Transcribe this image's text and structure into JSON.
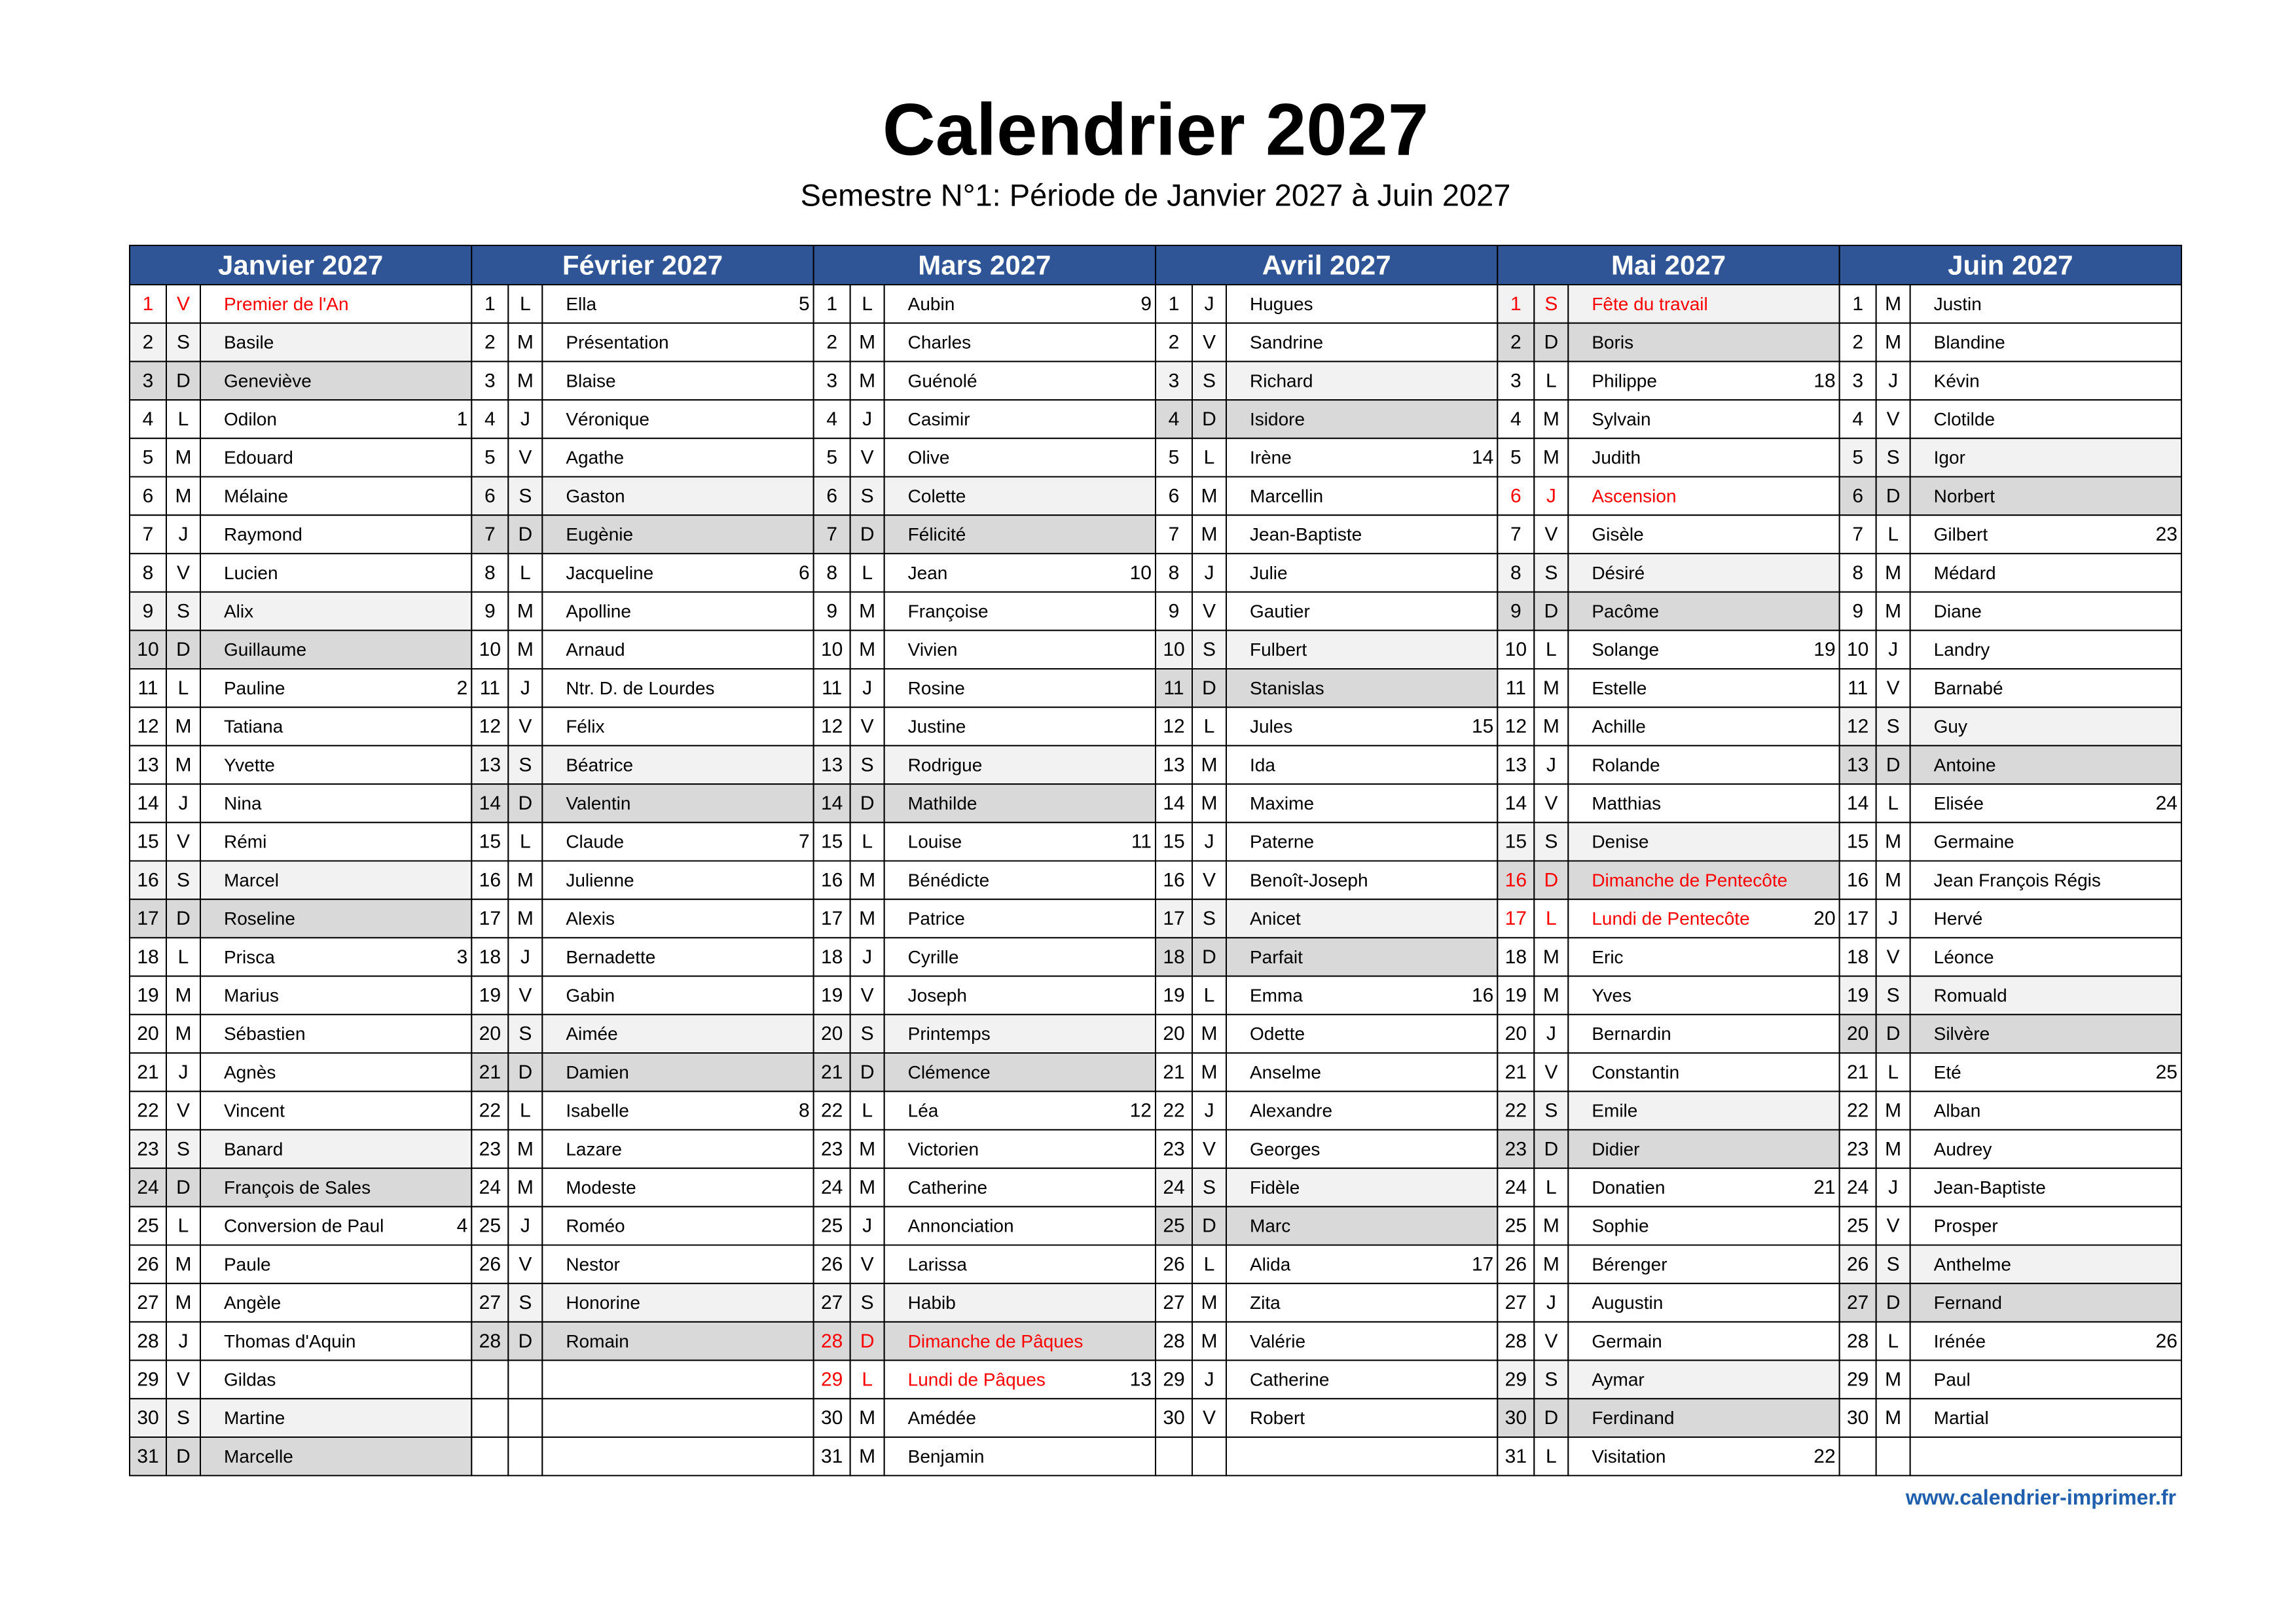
{
  "header": {
    "title": "Calendrier 2027",
    "subtitle": "Semestre N°1: Période de Janvier 2027 à Juin 2027"
  },
  "footer": "www.calendrier-imprimer.fr",
  "months": [
    {
      "name": "Janvier 2027",
      "days": [
        {
          "day": 1,
          "wd": "V",
          "name": "Premier de l'An",
          "holiday": true
        },
        {
          "day": 2,
          "wd": "S",
          "name": "Basile"
        },
        {
          "day": 3,
          "wd": "D",
          "name": "Geneviève"
        },
        {
          "day": 4,
          "wd": "L",
          "name": "Odilon",
          "week": 1
        },
        {
          "day": 5,
          "wd": "M",
          "name": "Edouard"
        },
        {
          "day": 6,
          "wd": "M",
          "name": "Mélaine"
        },
        {
          "day": 7,
          "wd": "J",
          "name": "Raymond"
        },
        {
          "day": 8,
          "wd": "V",
          "name": "Lucien"
        },
        {
          "day": 9,
          "wd": "S",
          "name": "Alix"
        },
        {
          "day": 10,
          "wd": "D",
          "name": "Guillaume"
        },
        {
          "day": 11,
          "wd": "L",
          "name": "Pauline",
          "week": 2
        },
        {
          "day": 12,
          "wd": "M",
          "name": "Tatiana"
        },
        {
          "day": 13,
          "wd": "M",
          "name": "Yvette"
        },
        {
          "day": 14,
          "wd": "J",
          "name": "Nina"
        },
        {
          "day": 15,
          "wd": "V",
          "name": "Rémi"
        },
        {
          "day": 16,
          "wd": "S",
          "name": "Marcel"
        },
        {
          "day": 17,
          "wd": "D",
          "name": "Roseline"
        },
        {
          "day": 18,
          "wd": "L",
          "name": "Prisca",
          "week": 3
        },
        {
          "day": 19,
          "wd": "M",
          "name": "Marius"
        },
        {
          "day": 20,
          "wd": "M",
          "name": "Sébastien"
        },
        {
          "day": 21,
          "wd": "J",
          "name": "Agnès"
        },
        {
          "day": 22,
          "wd": "V",
          "name": "Vincent"
        },
        {
          "day": 23,
          "wd": "S",
          "name": "Banard"
        },
        {
          "day": 24,
          "wd": "D",
          "name": "François de Sales"
        },
        {
          "day": 25,
          "wd": "L",
          "name": "Conversion de Paul",
          "week": 4
        },
        {
          "day": 26,
          "wd": "M",
          "name": "Paule"
        },
        {
          "day": 27,
          "wd": "M",
          "name": "Angèle"
        },
        {
          "day": 28,
          "wd": "J",
          "name": "Thomas d'Aquin"
        },
        {
          "day": 29,
          "wd": "V",
          "name": "Gildas"
        },
        {
          "day": 30,
          "wd": "S",
          "name": "Martine"
        },
        {
          "day": 31,
          "wd": "D",
          "name": "Marcelle"
        }
      ]
    },
    {
      "name": "Février 2027",
      "days": [
        {
          "day": 1,
          "wd": "L",
          "name": "Ella",
          "week": 5
        },
        {
          "day": 2,
          "wd": "M",
          "name": "Présentation"
        },
        {
          "day": 3,
          "wd": "M",
          "name": "Blaise"
        },
        {
          "day": 4,
          "wd": "J",
          "name": "Véronique"
        },
        {
          "day": 5,
          "wd": "V",
          "name": "Agathe"
        },
        {
          "day": 6,
          "wd": "S",
          "name": "Gaston"
        },
        {
          "day": 7,
          "wd": "D",
          "name": "Eugènie"
        },
        {
          "day": 8,
          "wd": "L",
          "name": "Jacqueline",
          "week": 6
        },
        {
          "day": 9,
          "wd": "M",
          "name": "Apolline"
        },
        {
          "day": 10,
          "wd": "M",
          "name": "Arnaud"
        },
        {
          "day": 11,
          "wd": "J",
          "name": "Ntr. D. de Lourdes"
        },
        {
          "day": 12,
          "wd": "V",
          "name": "Félix"
        },
        {
          "day": 13,
          "wd": "S",
          "name": "Béatrice"
        },
        {
          "day": 14,
          "wd": "D",
          "name": "Valentin"
        },
        {
          "day": 15,
          "wd": "L",
          "name": "Claude",
          "week": 7
        },
        {
          "day": 16,
          "wd": "M",
          "name": "Julienne"
        },
        {
          "day": 17,
          "wd": "M",
          "name": "Alexis"
        },
        {
          "day": 18,
          "wd": "J",
          "name": "Bernadette"
        },
        {
          "day": 19,
          "wd": "V",
          "name": "Gabin"
        },
        {
          "day": 20,
          "wd": "S",
          "name": "Aimée"
        },
        {
          "day": 21,
          "wd": "D",
          "name": "Damien"
        },
        {
          "day": 22,
          "wd": "L",
          "name": "Isabelle",
          "week": 8
        },
        {
          "day": 23,
          "wd": "M",
          "name": "Lazare"
        },
        {
          "day": 24,
          "wd": "M",
          "name": "Modeste"
        },
        {
          "day": 25,
          "wd": "J",
          "name": "Roméo"
        },
        {
          "day": 26,
          "wd": "V",
          "name": "Nestor"
        },
        {
          "day": 27,
          "wd": "S",
          "name": "Honorine"
        },
        {
          "day": 28,
          "wd": "D",
          "name": "Romain"
        }
      ]
    },
    {
      "name": "Mars 2027",
      "days": [
        {
          "day": 1,
          "wd": "L",
          "name": "Aubin",
          "week": 9
        },
        {
          "day": 2,
          "wd": "M",
          "name": "Charles"
        },
        {
          "day": 3,
          "wd": "M",
          "name": "Guénolé"
        },
        {
          "day": 4,
          "wd": "J",
          "name": "Casimir"
        },
        {
          "day": 5,
          "wd": "V",
          "name": "Olive"
        },
        {
          "day": 6,
          "wd": "S",
          "name": "Colette"
        },
        {
          "day": 7,
          "wd": "D",
          "name": "Félicité"
        },
        {
          "day": 8,
          "wd": "L",
          "name": "Jean",
          "week": 10
        },
        {
          "day": 9,
          "wd": "M",
          "name": "Françoise"
        },
        {
          "day": 10,
          "wd": "M",
          "name": "Vivien"
        },
        {
          "day": 11,
          "wd": "J",
          "name": "Rosine"
        },
        {
          "day": 12,
          "wd": "V",
          "name": "Justine"
        },
        {
          "day": 13,
          "wd": "S",
          "name": "Rodrigue"
        },
        {
          "day": 14,
          "wd": "D",
          "name": "Mathilde"
        },
        {
          "day": 15,
          "wd": "L",
          "name": "Louise",
          "week": 11
        },
        {
          "day": 16,
          "wd": "M",
          "name": "Bénédicte"
        },
        {
          "day": 17,
          "wd": "M",
          "name": "Patrice"
        },
        {
          "day": 18,
          "wd": "J",
          "name": "Cyrille"
        },
        {
          "day": 19,
          "wd": "V",
          "name": "Joseph"
        },
        {
          "day": 20,
          "wd": "S",
          "name": "Printemps"
        },
        {
          "day": 21,
          "wd": "D",
          "name": "Clémence"
        },
        {
          "day": 22,
          "wd": "L",
          "name": "Léa",
          "week": 12
        },
        {
          "day": 23,
          "wd": "M",
          "name": "Victorien"
        },
        {
          "day": 24,
          "wd": "M",
          "name": "Catherine"
        },
        {
          "day": 25,
          "wd": "J",
          "name": "Annonciation"
        },
        {
          "day": 26,
          "wd": "V",
          "name": "Larissa"
        },
        {
          "day": 27,
          "wd": "S",
          "name": "Habib"
        },
        {
          "day": 28,
          "wd": "D",
          "name": "Dimanche de Pâques",
          "holiday": true
        },
        {
          "day": 29,
          "wd": "L",
          "name": "Lundi de Pâques",
          "week": 13,
          "holiday": true
        },
        {
          "day": 30,
          "wd": "M",
          "name": "Amédée"
        },
        {
          "day": 31,
          "wd": "M",
          "name": "Benjamin"
        }
      ]
    },
    {
      "name": "Avril 2027",
      "days": [
        {
          "day": 1,
          "wd": "J",
          "name": "Hugues"
        },
        {
          "day": 2,
          "wd": "V",
          "name": "Sandrine"
        },
        {
          "day": 3,
          "wd": "S",
          "name": "Richard"
        },
        {
          "day": 4,
          "wd": "D",
          "name": "Isidore"
        },
        {
          "day": 5,
          "wd": "L",
          "name": "Irène",
          "week": 14
        },
        {
          "day": 6,
          "wd": "M",
          "name": "Marcellin"
        },
        {
          "day": 7,
          "wd": "M",
          "name": "Jean-Baptiste"
        },
        {
          "day": 8,
          "wd": "J",
          "name": "Julie"
        },
        {
          "day": 9,
          "wd": "V",
          "name": "Gautier"
        },
        {
          "day": 10,
          "wd": "S",
          "name": "Fulbert"
        },
        {
          "day": 11,
          "wd": "D",
          "name": "Stanislas"
        },
        {
          "day": 12,
          "wd": "L",
          "name": "Jules",
          "week": 15
        },
        {
          "day": 13,
          "wd": "M",
          "name": "Ida"
        },
        {
          "day": 14,
          "wd": "M",
          "name": "Maxime"
        },
        {
          "day": 15,
          "wd": "J",
          "name": "Paterne"
        },
        {
          "day": 16,
          "wd": "V",
          "name": "Benoît-Joseph"
        },
        {
          "day": 17,
          "wd": "S",
          "name": "Anicet"
        },
        {
          "day": 18,
          "wd": "D",
          "name": "Parfait"
        },
        {
          "day": 19,
          "wd": "L",
          "name": "Emma",
          "week": 16
        },
        {
          "day": 20,
          "wd": "M",
          "name": "Odette"
        },
        {
          "day": 21,
          "wd": "M",
          "name": "Anselme"
        },
        {
          "day": 22,
          "wd": "J",
          "name": "Alexandre"
        },
        {
          "day": 23,
          "wd": "V",
          "name": "Georges"
        },
        {
          "day": 24,
          "wd": "S",
          "name": "Fidèle"
        },
        {
          "day": 25,
          "wd": "D",
          "name": "Marc"
        },
        {
          "day": 26,
          "wd": "L",
          "name": "Alida",
          "week": 17
        },
        {
          "day": 27,
          "wd": "M",
          "name": "Zita"
        },
        {
          "day": 28,
          "wd": "M",
          "name": "Valérie"
        },
        {
          "day": 29,
          "wd": "J",
          "name": "Catherine"
        },
        {
          "day": 30,
          "wd": "V",
          "name": "Robert"
        }
      ]
    },
    {
      "name": "Mai 2027",
      "days": [
        {
          "day": 1,
          "wd": "S",
          "name": "Fête du travail",
          "holiday": true
        },
        {
          "day": 2,
          "wd": "D",
          "name": "Boris"
        },
        {
          "day": 3,
          "wd": "L",
          "name": "Philippe",
          "week": 18
        },
        {
          "day": 4,
          "wd": "M",
          "name": "Sylvain"
        },
        {
          "day": 5,
          "wd": "M",
          "name": "Judith"
        },
        {
          "day": 6,
          "wd": "J",
          "name": "Ascension",
          "holiday": true
        },
        {
          "day": 7,
          "wd": "V",
          "name": "Gisèle"
        },
        {
          "day": 8,
          "wd": "S",
          "name": "Désiré"
        },
        {
          "day": 9,
          "wd": "D",
          "name": "Pacôme"
        },
        {
          "day": 10,
          "wd": "L",
          "name": "Solange",
          "week": 19
        },
        {
          "day": 11,
          "wd": "M",
          "name": "Estelle"
        },
        {
          "day": 12,
          "wd": "M",
          "name": "Achille"
        },
        {
          "day": 13,
          "wd": "J",
          "name": "Rolande"
        },
        {
          "day": 14,
          "wd": "V",
          "name": "Matthias"
        },
        {
          "day": 15,
          "wd": "S",
          "name": "Denise"
        },
        {
          "day": 16,
          "wd": "D",
          "name": "Dimanche de Pentecôte",
          "holiday": true
        },
        {
          "day": 17,
          "wd": "L",
          "name": "Lundi de Pentecôte",
          "week": 20,
          "holiday": true
        },
        {
          "day": 18,
          "wd": "M",
          "name": "Eric"
        },
        {
          "day": 19,
          "wd": "M",
          "name": "Yves"
        },
        {
          "day": 20,
          "wd": "J",
          "name": "Bernardin"
        },
        {
          "day": 21,
          "wd": "V",
          "name": "Constantin"
        },
        {
          "day": 22,
          "wd": "S",
          "name": "Emile"
        },
        {
          "day": 23,
          "wd": "D",
          "name": "Didier"
        },
        {
          "day": 24,
          "wd": "L",
          "name": "Donatien",
          "week": 21
        },
        {
          "day": 25,
          "wd": "M",
          "name": "Sophie"
        },
        {
          "day": 26,
          "wd": "M",
          "name": "Bérenger"
        },
        {
          "day": 27,
          "wd": "J",
          "name": "Augustin"
        },
        {
          "day": 28,
          "wd": "V",
          "name": "Germain"
        },
        {
          "day": 29,
          "wd": "S",
          "name": "Aymar"
        },
        {
          "day": 30,
          "wd": "D",
          "name": "Ferdinand"
        },
        {
          "day": 31,
          "wd": "L",
          "name": "Visitation",
          "week": 22
        }
      ]
    },
    {
      "name": "Juin 2027",
      "days": [
        {
          "day": 1,
          "wd": "M",
          "name": "Justin"
        },
        {
          "day": 2,
          "wd": "M",
          "name": "Blandine"
        },
        {
          "day": 3,
          "wd": "J",
          "name": "Kévin"
        },
        {
          "day": 4,
          "wd": "V",
          "name": "Clotilde"
        },
        {
          "day": 5,
          "wd": "S",
          "name": "Igor"
        },
        {
          "day": 6,
          "wd": "D",
          "name": "Norbert"
        },
        {
          "day": 7,
          "wd": "L",
          "name": "Gilbert",
          "week": 23
        },
        {
          "day": 8,
          "wd": "M",
          "name": "Médard"
        },
        {
          "day": 9,
          "wd": "M",
          "name": "Diane"
        },
        {
          "day": 10,
          "wd": "J",
          "name": "Landry"
        },
        {
          "day": 11,
          "wd": "V",
          "name": "Barnabé"
        },
        {
          "day": 12,
          "wd": "S",
          "name": "Guy"
        },
        {
          "day": 13,
          "wd": "D",
          "name": "Antoine"
        },
        {
          "day": 14,
          "wd": "L",
          "name": "Elisée",
          "week": 24
        },
        {
          "day": 15,
          "wd": "M",
          "name": "Germaine"
        },
        {
          "day": 16,
          "wd": "M",
          "name": "Jean François Régis"
        },
        {
          "day": 17,
          "wd": "J",
          "name": "Hervé"
        },
        {
          "day": 18,
          "wd": "V",
          "name": "Léonce"
        },
        {
          "day": 19,
          "wd": "S",
          "name": "Romuald"
        },
        {
          "day": 20,
          "wd": "D",
          "name": "Silvère"
        },
        {
          "day": 21,
          "wd": "L",
          "name": "Eté",
          "week": 25
        },
        {
          "day": 22,
          "wd": "M",
          "name": "Alban"
        },
        {
          "day": 23,
          "wd": "M",
          "name": "Audrey"
        },
        {
          "day": 24,
          "wd": "J",
          "name": "Jean-Baptiste"
        },
        {
          "day": 25,
          "wd": "V",
          "name": "Prosper"
        },
        {
          "day": 26,
          "wd": "S",
          "name": "Anthelme"
        },
        {
          "day": 27,
          "wd": "D",
          "name": "Fernand"
        },
        {
          "day": 28,
          "wd": "L",
          "name": "Irénée",
          "week": 26
        },
        {
          "day": 29,
          "wd": "M",
          "name": "Paul"
        },
        {
          "day": 30,
          "wd": "M",
          "name": "Martial"
        }
      ]
    }
  ]
}
